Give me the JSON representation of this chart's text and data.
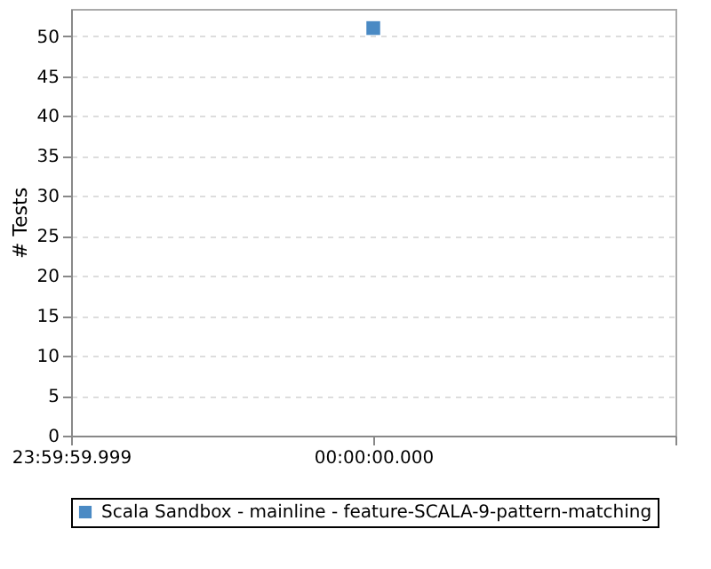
{
  "chart_data": {
    "type": "scatter",
    "ylabel": "# Tests",
    "categories": [
      "23:59:59.999",
      "00:00:00.000",
      null
    ],
    "series": [
      {
        "name": "Scala Sandbox - mainline - feature-SCALA-9-pattern-matching",
        "color": "#4a8ac4",
        "values": [
          null,
          51,
          null
        ]
      }
    ],
    "ylim": [
      0,
      53.4
    ],
    "yticks": [
      0,
      5,
      10,
      15,
      20,
      25,
      30,
      35,
      40,
      45,
      50
    ],
    "grid": "y",
    "legend": "bottom",
    "marker": "square"
  }
}
